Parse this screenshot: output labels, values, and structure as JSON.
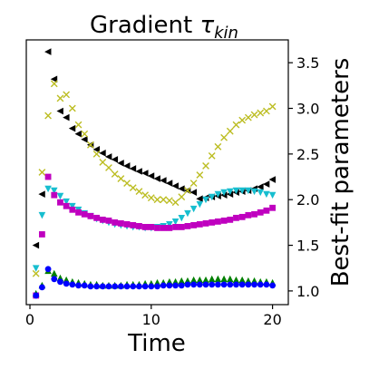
{
  "chart_data": {
    "type": "scatter",
    "title_main": "Gradient ",
    "title_symbol": "τ",
    "title_subscript": "kin",
    "xlabel": "Time",
    "ylabel": "Best-fit parameters",
    "xlim": [
      -0.3,
      21.3
    ],
    "ylim": [
      0.85,
      3.75
    ],
    "xticks": [
      0,
      10,
      20
    ],
    "xtick_labels": [
      "0",
      "10",
      "20"
    ],
    "yticks": [
      1.0,
      1.5,
      2.0,
      2.5,
      3.0,
      3.5
    ],
    "ytick_labels": [
      "1.0",
      "1.5",
      "2.0",
      "2.5",
      "3.0",
      "3.5"
    ],
    "y_axis_side": "right",
    "grid": false,
    "series": [
      {
        "marker": "triangle-left",
        "color": "#000000",
        "points": [
          [
            0.5,
            1.5
          ],
          [
            1.0,
            2.06
          ],
          [
            1.5,
            3.62
          ],
          [
            2.0,
            3.32
          ],
          [
            2.5,
            2.97
          ],
          [
            3.0,
            2.9
          ],
          [
            3.5,
            2.78
          ],
          [
            4.0,
            2.72
          ],
          [
            4.5,
            2.66
          ],
          [
            5.0,
            2.6
          ],
          [
            5.5,
            2.55
          ],
          [
            6.0,
            2.51
          ],
          [
            6.5,
            2.47
          ],
          [
            7.0,
            2.44
          ],
          [
            7.5,
            2.4
          ],
          [
            8.0,
            2.37
          ],
          [
            8.5,
            2.34
          ],
          [
            9.0,
            2.31
          ],
          [
            9.5,
            2.29
          ],
          [
            10.0,
            2.26
          ],
          [
            10.5,
            2.23
          ],
          [
            11.0,
            2.21
          ],
          [
            11.5,
            2.18
          ],
          [
            12.0,
            2.15
          ],
          [
            12.5,
            2.12
          ],
          [
            13.0,
            2.1
          ],
          [
            13.5,
            2.08
          ],
          [
            14.0,
            2.01
          ],
          [
            14.5,
            2.02
          ],
          [
            15.0,
            2.03
          ],
          [
            15.5,
            2.04
          ],
          [
            16.0,
            2.05
          ],
          [
            16.5,
            2.06
          ],
          [
            17.0,
            2.08
          ],
          [
            17.5,
            2.09
          ],
          [
            18.0,
            2.1
          ],
          [
            18.5,
            2.12
          ],
          [
            19.0,
            2.14
          ],
          [
            19.5,
            2.17
          ],
          [
            20.0,
            2.22
          ]
        ]
      },
      {
        "marker": "x",
        "color": "#bcbd22",
        "points": [
          [
            0.5,
            1.19
          ],
          [
            1.0,
            2.3
          ],
          [
            1.5,
            2.92
          ],
          [
            2.0,
            3.27
          ],
          [
            2.5,
            3.11
          ],
          [
            3.0,
            3.15
          ],
          [
            3.5,
            3.0
          ],
          [
            4.0,
            2.82
          ],
          [
            4.5,
            2.72
          ],
          [
            5.0,
            2.6
          ],
          [
            5.5,
            2.5
          ],
          [
            6.0,
            2.41
          ],
          [
            6.5,
            2.35
          ],
          [
            7.0,
            2.28
          ],
          [
            7.5,
            2.23
          ],
          [
            8.0,
            2.18
          ],
          [
            8.5,
            2.13
          ],
          [
            9.0,
            2.09
          ],
          [
            9.5,
            2.05
          ],
          [
            10.0,
            2.02
          ],
          [
            10.5,
            2.0
          ],
          [
            11.0,
            2.0
          ],
          [
            11.5,
            1.99
          ],
          [
            12.0,
            1.97
          ],
          [
            12.5,
            2.03
          ],
          [
            13.0,
            2.1
          ],
          [
            13.5,
            2.18
          ],
          [
            14.0,
            2.27
          ],
          [
            14.5,
            2.37
          ],
          [
            15.0,
            2.48
          ],
          [
            15.5,
            2.58
          ],
          [
            16.0,
            2.68
          ],
          [
            16.5,
            2.75
          ],
          [
            17.0,
            2.82
          ],
          [
            17.5,
            2.87
          ],
          [
            18.0,
            2.9
          ],
          [
            18.5,
            2.93
          ],
          [
            19.0,
            2.95
          ],
          [
            19.5,
            2.97
          ],
          [
            20.0,
            3.02
          ]
        ]
      },
      {
        "marker": "triangle-down",
        "color": "#17becf",
        "points": [
          [
            0.5,
            1.25
          ],
          [
            1.0,
            1.83
          ],
          [
            1.5,
            2.12
          ],
          [
            2.0,
            2.1
          ],
          [
            2.5,
            2.04
          ],
          [
            3.0,
            1.98
          ],
          [
            3.5,
            1.93
          ],
          [
            4.0,
            1.89
          ],
          [
            4.5,
            1.85
          ],
          [
            5.0,
            1.82
          ],
          [
            5.5,
            1.79
          ],
          [
            6.0,
            1.77
          ],
          [
            6.5,
            1.75
          ],
          [
            7.0,
            1.73
          ],
          [
            7.5,
            1.72
          ],
          [
            8.0,
            1.71
          ],
          [
            8.5,
            1.7
          ],
          [
            9.0,
            1.7
          ],
          [
            9.5,
            1.69
          ],
          [
            10.0,
            1.69
          ],
          [
            10.5,
            1.7
          ],
          [
            11.0,
            1.71
          ],
          [
            11.5,
            1.73
          ],
          [
            12.0,
            1.76
          ],
          [
            12.5,
            1.8
          ],
          [
            13.0,
            1.85
          ],
          [
            13.5,
            1.9
          ],
          [
            14.0,
            1.95
          ],
          [
            14.5,
            2.0
          ],
          [
            15.0,
            2.03
          ],
          [
            15.5,
            2.06
          ],
          [
            16.0,
            2.08
          ],
          [
            16.5,
            2.09
          ],
          [
            17.0,
            2.1
          ],
          [
            17.5,
            2.1
          ],
          [
            18.0,
            2.1
          ],
          [
            18.5,
            2.09
          ],
          [
            19.0,
            2.08
          ],
          [
            19.5,
            2.06
          ],
          [
            20.0,
            2.05
          ]
        ]
      },
      {
        "marker": "square",
        "color": "#bf00bf",
        "points": [
          [
            0.5,
            0.95
          ],
          [
            1.0,
            1.62
          ],
          [
            1.5,
            2.25
          ],
          [
            2.0,
            2.05
          ],
          [
            2.5,
            1.97
          ],
          [
            3.0,
            1.93
          ],
          [
            3.5,
            1.89
          ],
          [
            4.0,
            1.86
          ],
          [
            4.5,
            1.84
          ],
          [
            5.0,
            1.82
          ],
          [
            5.5,
            1.8
          ],
          [
            6.0,
            1.78
          ],
          [
            6.5,
            1.77
          ],
          [
            7.0,
            1.75
          ],
          [
            7.5,
            1.74
          ],
          [
            8.0,
            1.73
          ],
          [
            8.5,
            1.72
          ],
          [
            9.0,
            1.71
          ],
          [
            9.5,
            1.7
          ],
          [
            10.0,
            1.7
          ],
          [
            10.5,
            1.69
          ],
          [
            11.0,
            1.69
          ],
          [
            11.5,
            1.69
          ],
          [
            12.0,
            1.7
          ],
          [
            12.5,
            1.7
          ],
          [
            13.0,
            1.71
          ],
          [
            13.5,
            1.72
          ],
          [
            14.0,
            1.73
          ],
          [
            14.5,
            1.74
          ],
          [
            15.0,
            1.75
          ],
          [
            15.5,
            1.76
          ],
          [
            16.0,
            1.77
          ],
          [
            16.5,
            1.78
          ],
          [
            17.0,
            1.8
          ],
          [
            17.5,
            1.81
          ],
          [
            18.0,
            1.83
          ],
          [
            18.5,
            1.84
          ],
          [
            19.0,
            1.86
          ],
          [
            19.5,
            1.88
          ],
          [
            20.0,
            1.91
          ]
        ]
      },
      {
        "marker": "triangle-up",
        "color": "#008000",
        "points": [
          [
            0.5,
            0.97
          ],
          [
            1.0,
            1.06
          ],
          [
            1.5,
            1.22
          ],
          [
            2.0,
            1.19
          ],
          [
            2.5,
            1.14
          ],
          [
            3.0,
            1.12
          ],
          [
            3.5,
            1.1
          ],
          [
            4.0,
            1.09
          ],
          [
            4.5,
            1.08
          ],
          [
            5.0,
            1.07
          ],
          [
            5.5,
            1.07
          ],
          [
            6.0,
            1.06
          ],
          [
            6.5,
            1.06
          ],
          [
            7.0,
            1.06
          ],
          [
            7.5,
            1.06
          ],
          [
            8.0,
            1.07
          ],
          [
            8.5,
            1.07
          ],
          [
            9.0,
            1.07
          ],
          [
            9.5,
            1.08
          ],
          [
            10.0,
            1.08
          ],
          [
            10.5,
            1.09
          ],
          [
            11.0,
            1.09
          ],
          [
            11.5,
            1.1
          ],
          [
            12.0,
            1.1
          ],
          [
            12.5,
            1.11
          ],
          [
            13.0,
            1.11
          ],
          [
            13.5,
            1.12
          ],
          [
            14.0,
            1.12
          ],
          [
            14.5,
            1.12
          ],
          [
            15.0,
            1.13
          ],
          [
            15.5,
            1.13
          ],
          [
            16.0,
            1.13
          ],
          [
            16.5,
            1.13
          ],
          [
            17.0,
            1.12
          ],
          [
            17.5,
            1.12
          ],
          [
            18.0,
            1.11
          ],
          [
            18.5,
            1.11
          ],
          [
            19.0,
            1.1
          ],
          [
            19.5,
            1.1
          ],
          [
            20.0,
            1.09
          ]
        ]
      },
      {
        "marker": "circle",
        "color": "#0000ff",
        "points": [
          [
            0.5,
            0.95
          ],
          [
            1.0,
            1.04
          ],
          [
            1.5,
            1.24
          ],
          [
            2.0,
            1.13
          ],
          [
            2.5,
            1.1
          ],
          [
            3.0,
            1.08
          ],
          [
            3.5,
            1.07
          ],
          [
            4.0,
            1.06
          ],
          [
            4.5,
            1.06
          ],
          [
            5.0,
            1.05
          ],
          [
            5.5,
            1.05
          ],
          [
            6.0,
            1.05
          ],
          [
            6.5,
            1.05
          ],
          [
            7.0,
            1.05
          ],
          [
            7.5,
            1.05
          ],
          [
            8.0,
            1.05
          ],
          [
            8.5,
            1.05
          ],
          [
            9.0,
            1.05
          ],
          [
            9.5,
            1.05
          ],
          [
            10.0,
            1.05
          ],
          [
            10.5,
            1.05
          ],
          [
            11.0,
            1.06
          ],
          [
            11.5,
            1.06
          ],
          [
            12.0,
            1.06
          ],
          [
            12.5,
            1.06
          ],
          [
            13.0,
            1.07
          ],
          [
            13.5,
            1.07
          ],
          [
            14.0,
            1.07
          ],
          [
            14.5,
            1.07
          ],
          [
            15.0,
            1.07
          ],
          [
            15.5,
            1.07
          ],
          [
            16.0,
            1.07
          ],
          [
            16.5,
            1.07
          ],
          [
            17.0,
            1.07
          ],
          [
            17.5,
            1.07
          ],
          [
            18.0,
            1.07
          ],
          [
            18.5,
            1.07
          ],
          [
            19.0,
            1.07
          ],
          [
            19.5,
            1.07
          ],
          [
            20.0,
            1.06
          ]
        ]
      }
    ]
  }
}
